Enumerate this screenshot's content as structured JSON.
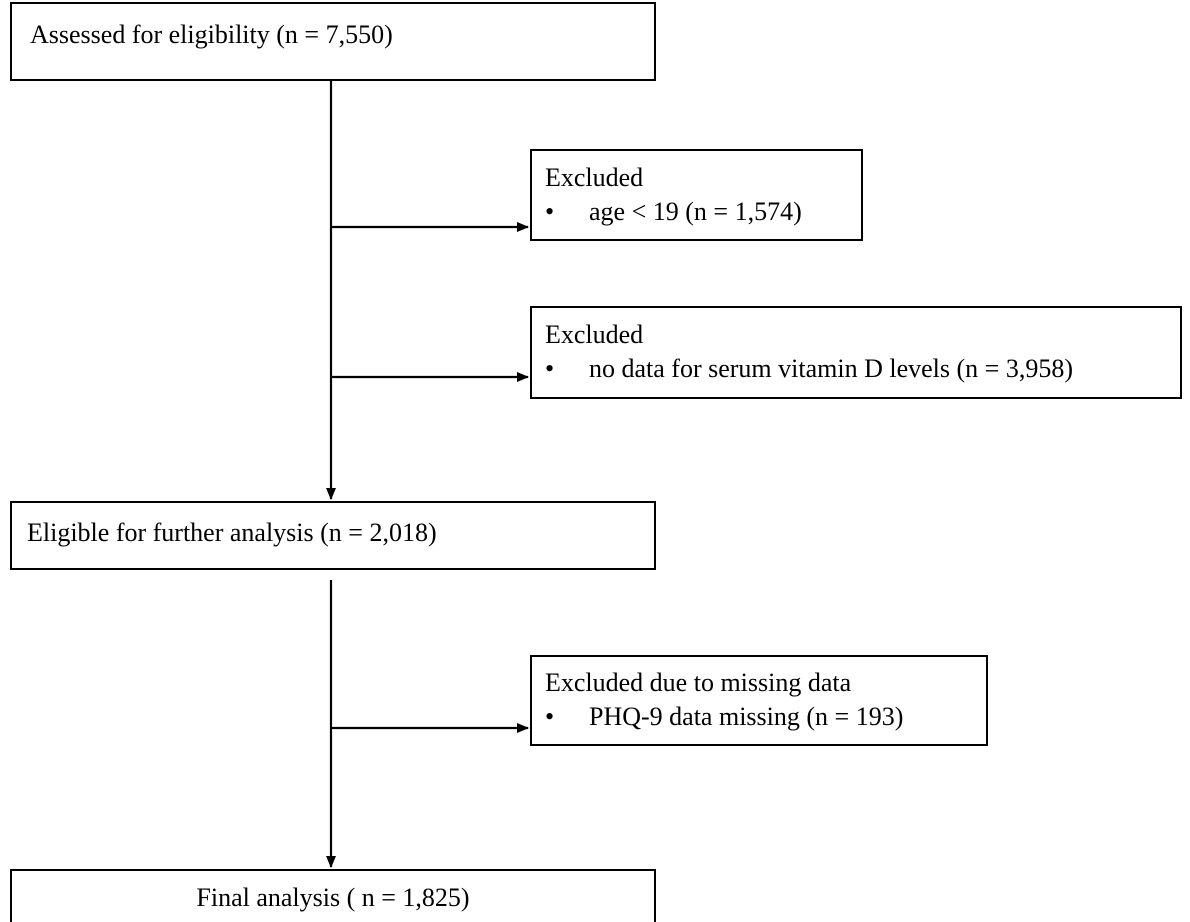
{
  "flowchart": {
    "assessed": {
      "label": "Assessed for eligibility (n = 7,550)"
    },
    "exclusion_age": {
      "title": "Excluded",
      "bullet_symbol": "•",
      "item": "age < 19 (n = 1,574)"
    },
    "exclusion_vitamin_d": {
      "title": "Excluded",
      "bullet_symbol": "•",
      "item": "no data for serum vitamin D levels (n = 3,958)"
    },
    "eligible": {
      "label": "Eligible for further analysis (n = 2,018)"
    },
    "exclusion_missing": {
      "title": "Excluded due to missing data",
      "bullet_symbol": "•",
      "item": "PHQ-9 data missing (n = 193)"
    },
    "final": {
      "label": "Final analysis ( n = 1,825)"
    }
  },
  "colors": {
    "line": "#000000",
    "box_border": "#000000",
    "background": "#ffffff",
    "text": "#000000"
  }
}
